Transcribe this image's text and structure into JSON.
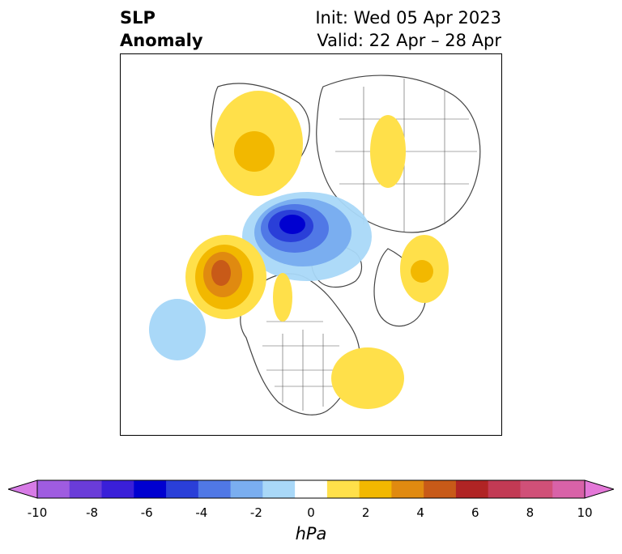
{
  "title": {
    "left_line1": "SLP",
    "left_line2": "Anomaly",
    "right_line1": "Init: Wed 05 Apr 2023",
    "right_line2": "Valid: 22 Apr – 28 Apr"
  },
  "colorbar": {
    "unit": "hPa",
    "ticks": [
      "-10",
      "-8",
      "-6",
      "-4",
      "-2",
      "0",
      "2",
      "4",
      "6",
      "8",
      "10"
    ],
    "colors": [
      "#d77be6",
      "#9f5ce0",
      "#6a3cd8",
      "#3a1fd8",
      "#0000d0",
      "#2a3fd8",
      "#5078e6",
      "#7aaef0",
      "#a9d8f8",
      "#ffffff",
      "#ffe04a",
      "#f2b800",
      "#e08a10",
      "#c85a18",
      "#b02424",
      "#c23a54",
      "#d05078",
      "#d862a8",
      "#e478d8"
    ]
  },
  "map": {
    "projection": "polar-stereographic",
    "features": [
      {
        "name": "negative-anomaly-arctic",
        "level": "-6 hPa"
      },
      {
        "name": "positive-anomaly-gulf-of-alaska",
        "level": "+5 hPa"
      },
      {
        "name": "positive-anomaly-scandinavia",
        "level": "+2 hPa"
      },
      {
        "name": "positive-anomaly-atlantic-east-coast",
        "level": "+2 hPa"
      },
      {
        "name": "negative-anomaly-pacific",
        "level": "-2 hPa"
      }
    ]
  }
}
